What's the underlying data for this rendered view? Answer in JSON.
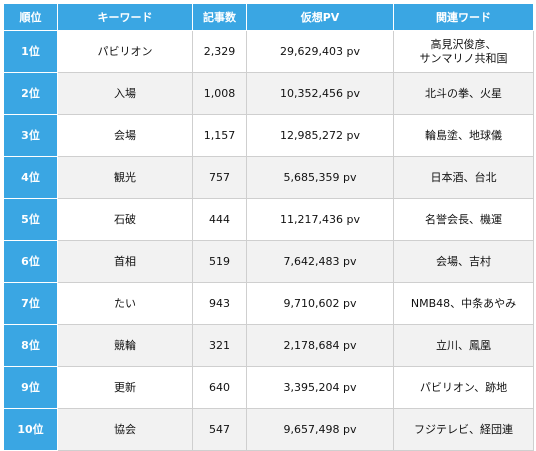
{
  "headers": {
    "rank": "順位",
    "keyword": "キーワード",
    "count": "記事数",
    "pv": "仮想PV",
    "related": "関連ワード"
  },
  "rows": [
    {
      "rank": "1位",
      "keyword": "パビリオン",
      "count": "2,329",
      "pv": "29,629,403 pv",
      "related": "高見沢俊彦、\nサンマリノ共和国"
    },
    {
      "rank": "2位",
      "keyword": "入場",
      "count": "1,008",
      "pv": "10,352,456 pv",
      "related": "北斗の拳、火星"
    },
    {
      "rank": "3位",
      "keyword": "会場",
      "count": "1,157",
      "pv": "12,985,272 pv",
      "related": "輪島塗、地球儀"
    },
    {
      "rank": "4位",
      "keyword": "観光",
      "count": "757",
      "pv": "5,685,359 pv",
      "related": "日本酒、台北"
    },
    {
      "rank": "5位",
      "keyword": "石破",
      "count": "444",
      "pv": "11,217,436 pv",
      "related": "名誉会長、機運"
    },
    {
      "rank": "6位",
      "keyword": "首相",
      "count": "519",
      "pv": "7,642,483 pv",
      "related": "会場、吉村"
    },
    {
      "rank": "7位",
      "keyword": "たい",
      "count": "943",
      "pv": "9,710,602 pv",
      "related": "NMB48、中条あやみ"
    },
    {
      "rank": "8位",
      "keyword": "競輪",
      "count": "321",
      "pv": "2,178,684 pv",
      "related": "立川、鳳凰"
    },
    {
      "rank": "9位",
      "keyword": "更新",
      "count": "640",
      "pv": "3,395,204 pv",
      "related": "パビリオン、跡地"
    },
    {
      "rank": "10位",
      "keyword": "協会",
      "count": "547",
      "pv": "9,657,498 pv",
      "related": "フジテレビ、経団連"
    }
  ],
  "colors": {
    "header_bg": "#3aa6e3",
    "header_text": "#ffffff",
    "alt_row_bg": "#f2f2f2"
  }
}
